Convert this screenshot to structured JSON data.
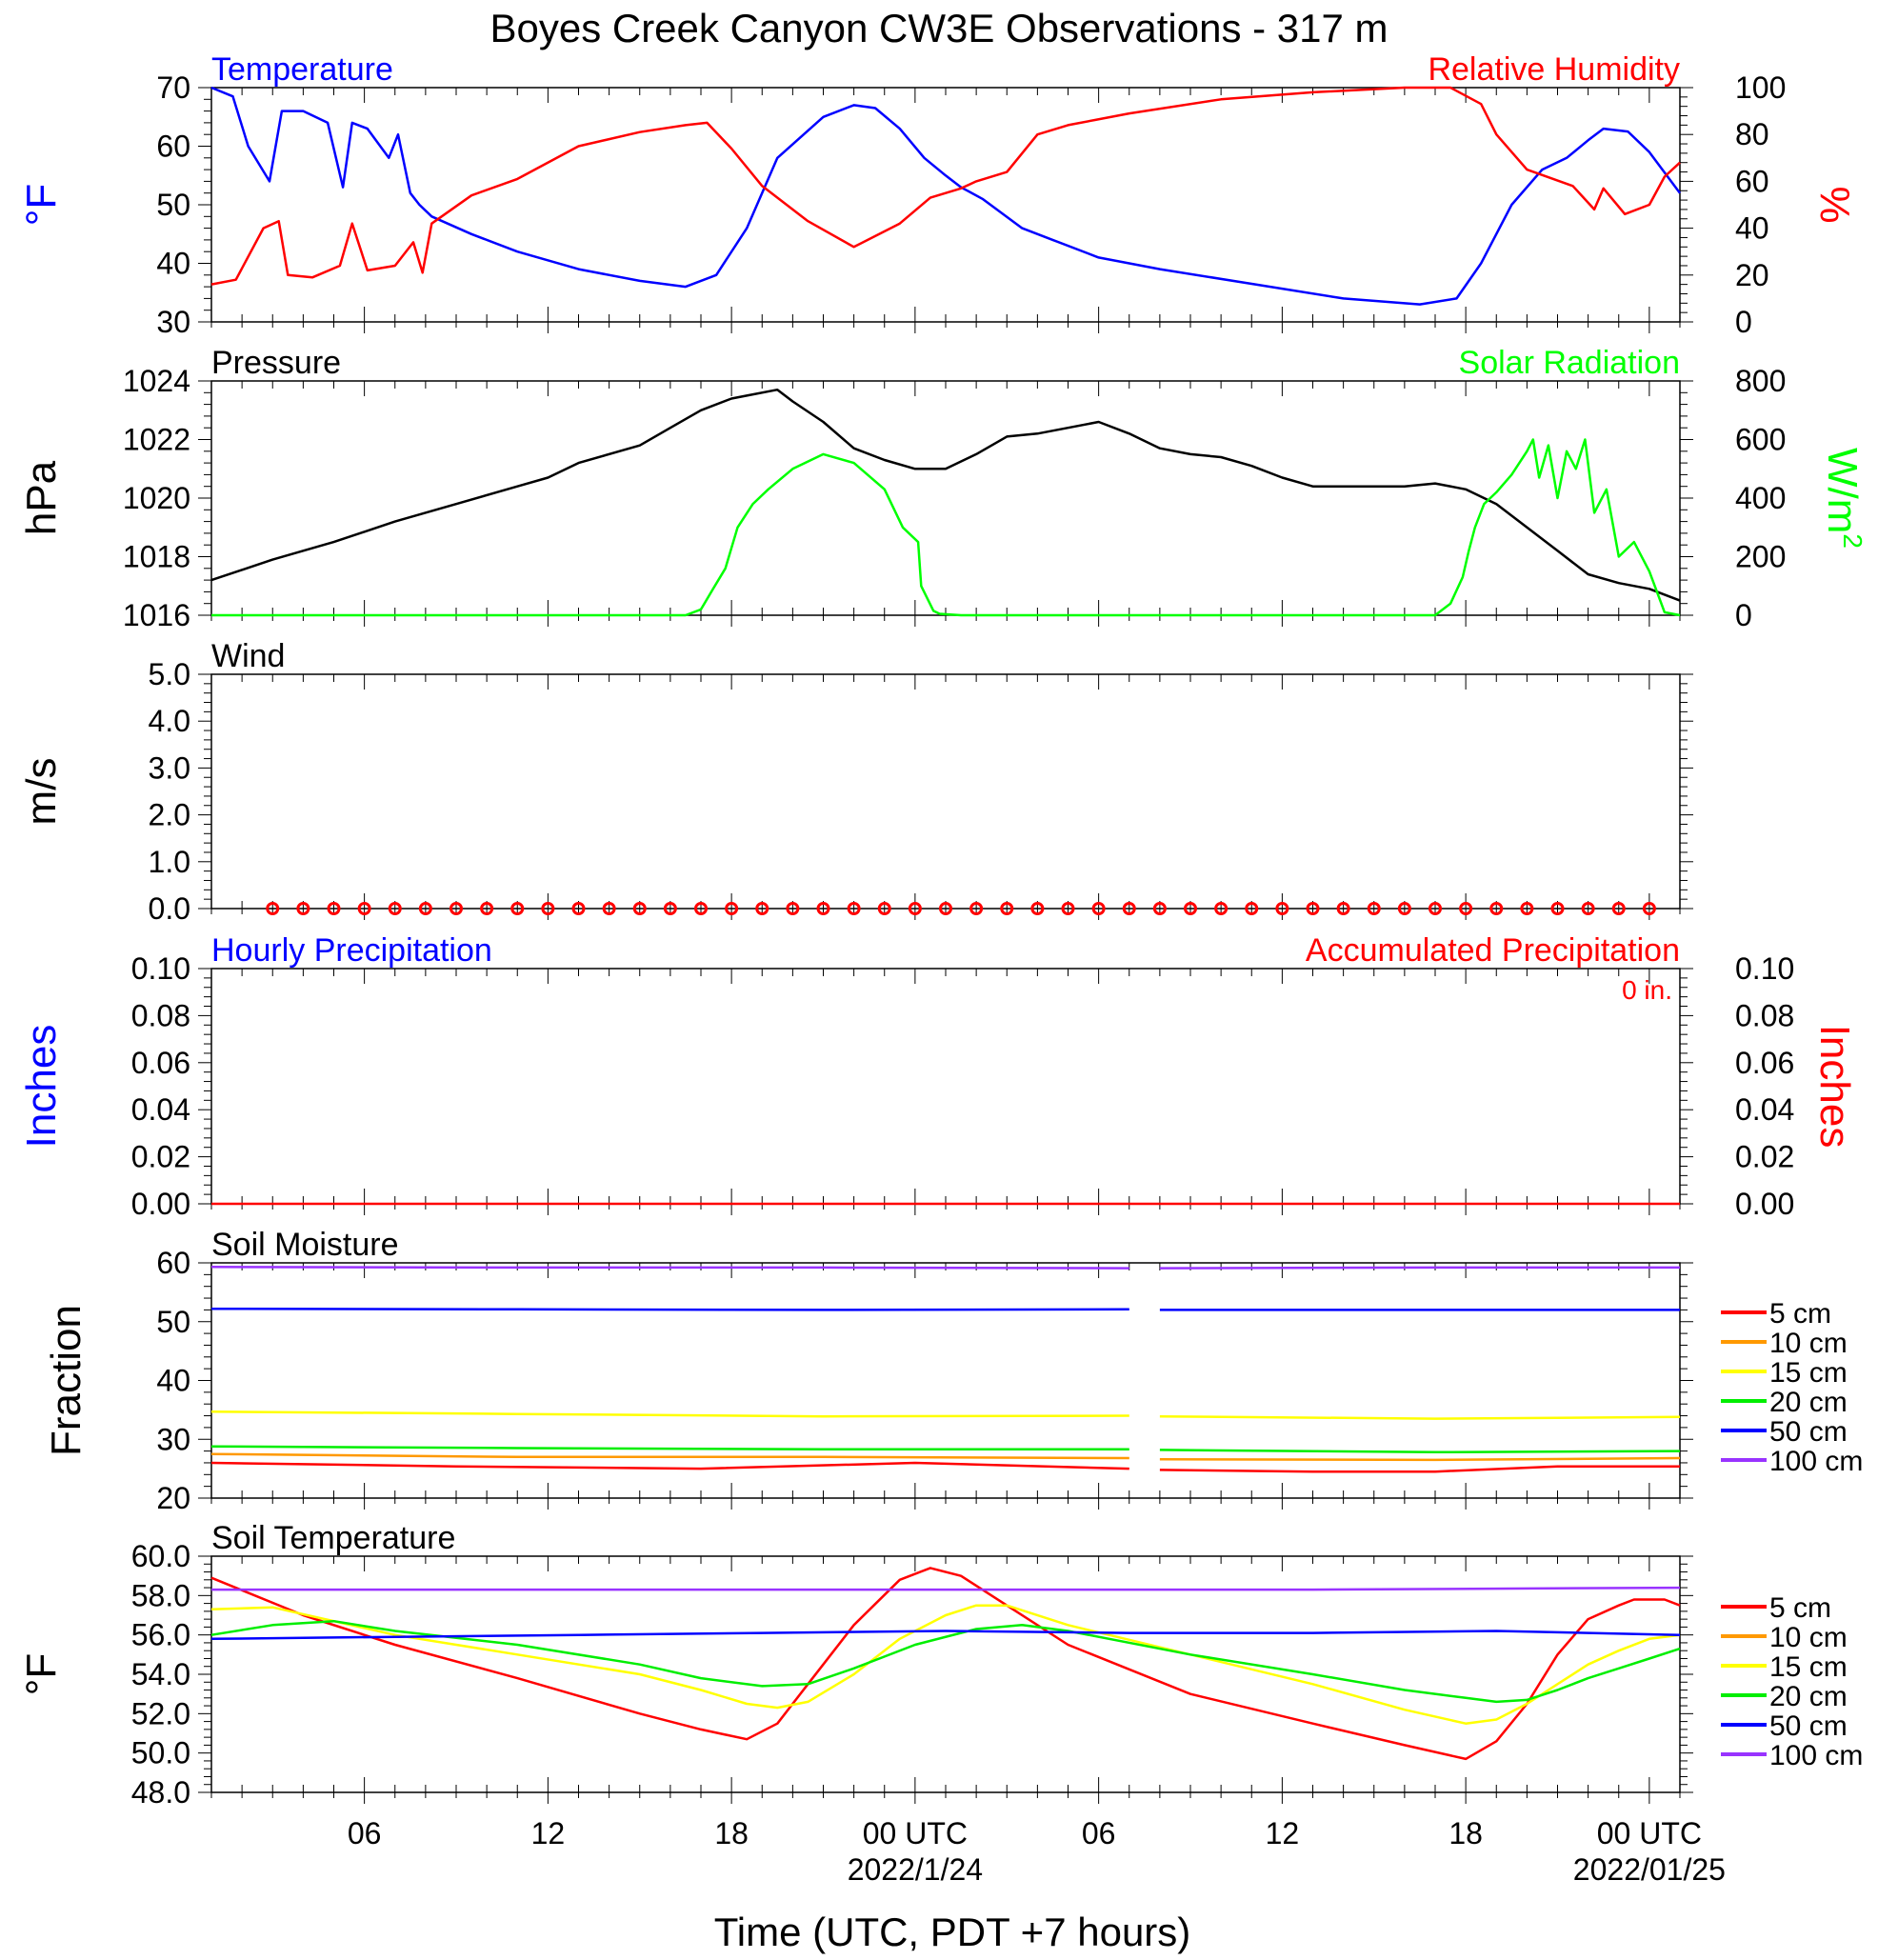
{
  "title": "Boyes Creek Canyon CW3E Observations - 317 m",
  "x_axis": {
    "title": "Time (UTC, PDT +7 hours)",
    "range_hours": [
      0,
      48
    ],
    "tick_labels": [
      {
        "hour": 5,
        "label": "06"
      },
      {
        "hour": 11,
        "label": "12"
      },
      {
        "hour": 17,
        "label": "18"
      },
      {
        "hour": 23,
        "label": "00 UTC"
      },
      {
        "hour": 29,
        "label": "06"
      },
      {
        "hour": 35,
        "label": "12"
      },
      {
        "hour": 41,
        "label": "18"
      },
      {
        "hour": 47,
        "label": "00 UTC"
      }
    ],
    "date_labels": [
      {
        "hour": 23,
        "label": "2022/1/24"
      },
      {
        "hour": 47,
        "label": "2022/01/25"
      }
    ]
  },
  "colors": {
    "temperature": "#0000ff",
    "humidity": "#ff0000",
    "pressure": "#000000",
    "solar": "#00ff00",
    "wind_marker": "#ff0000",
    "soil_5cm": "#ff0000",
    "soil_10cm": "#ff9900",
    "soil_15cm": "#ffff00",
    "soil_20cm": "#00ee00",
    "soil_50cm": "#0000ff",
    "soil_100cm": "#9933ff"
  },
  "chart_data": [
    {
      "type": "line",
      "panel": "temperature_humidity",
      "left_label": "Temperature",
      "right_label": "Relative Humidity",
      "y_left": {
        "label": "°F",
        "range": [
          30,
          70
        ],
        "tick_labels": [
          "30",
          "40",
          "50",
          "60",
          "70"
        ]
      },
      "y_right": {
        "label": "%",
        "range": [
          0,
          100
        ],
        "tick_labels": [
          "0",
          "20",
          "40",
          "60",
          "80",
          "100"
        ]
      },
      "series": [
        {
          "name": "Temperature",
          "axis": "left",
          "x": [
            0,
            0.7,
            1.2,
            1.9,
            2.3,
            3.0,
            3.8,
            4.3,
            4.6,
            5.1,
            5.8,
            6.1,
            6.5,
            6.8,
            7.2,
            8.5,
            10,
            12,
            14,
            15.5,
            16.5,
            17.5,
            18.5,
            20,
            21,
            21.7,
            22.5,
            23.3,
            24,
            24.5,
            25.2,
            26.5,
            27.5,
            29,
            31,
            34,
            37,
            39.5,
            40.7,
            41.5,
            42.5,
            43.5,
            44.3,
            45,
            45.5,
            46.3,
            47,
            48
          ],
          "y": [
            70,
            68.5,
            60,
            54,
            66,
            66,
            64,
            53,
            64,
            63,
            58,
            62,
            52,
            50,
            48,
            45,
            42,
            39,
            37,
            36,
            38,
            46,
            58,
            65,
            67,
            66.5,
            63,
            58,
            55,
            53,
            51,
            46,
            44,
            41,
            39,
            36.5,
            34,
            33,
            34,
            40,
            50,
            56,
            58,
            61,
            63,
            62.5,
            59,
            52
          ]
        },
        {
          "name": "Relative Humidity",
          "axis": "right",
          "x": [
            0,
            0.8,
            1.7,
            2.2,
            2.5,
            3.3,
            4.2,
            4.6,
            5.1,
            6.0,
            6.6,
            6.9,
            7.2,
            8.5,
            10,
            12,
            14,
            15.5,
            16.2,
            17,
            18,
            19.5,
            21,
            22.5,
            23.5,
            24.5,
            25,
            26,
            27,
            28,
            30,
            33,
            36,
            39,
            40.5,
            41.5,
            42,
            43,
            44.5,
            45.2,
            45.5,
            46.2,
            47,
            47.5,
            48
          ],
          "y": [
            16,
            18,
            40,
            43,
            20,
            19,
            24,
            42,
            22,
            24,
            34,
            21,
            42,
            54,
            61,
            75,
            81,
            84,
            85,
            74,
            58,
            43,
            32,
            42,
            53,
            57,
            60,
            64,
            80,
            84,
            89,
            95,
            98,
            100,
            100,
            93,
            80,
            65,
            58,
            48,
            57,
            46,
            50,
            62,
            68
          ]
        }
      ]
    },
    {
      "type": "line",
      "panel": "pressure_solar",
      "left_label": "Pressure",
      "right_label": "Solar Radiation",
      "y_left": {
        "label": "hPa",
        "range": [
          1016,
          1024
        ],
        "tick_labels": [
          "1016",
          "1018",
          "1020",
          "1022",
          "1024"
        ]
      },
      "y_right": {
        "label": "W/m",
        "label_superscript": "2",
        "range": [
          0,
          800
        ],
        "tick_labels": [
          "0",
          "200",
          "400",
          "600",
          "800"
        ]
      },
      "series": [
        {
          "name": "Pressure",
          "axis": "left",
          "x": [
            0,
            2,
            4,
            6,
            8,
            10,
            11,
            12,
            14,
            15,
            16,
            17,
            17.5,
            18.5,
            19,
            20,
            21,
            22,
            23,
            24,
            25,
            26,
            27,
            28,
            29,
            30,
            31,
            32,
            33,
            34,
            35,
            36,
            37,
            38,
            39,
            40,
            41,
            42,
            43,
            44,
            45,
            46,
            47,
            48
          ],
          "y": [
            1017.2,
            1017.9,
            1018.5,
            1019.2,
            1019.8,
            1020.4,
            1020.7,
            1021.2,
            1021.8,
            1022.4,
            1023.0,
            1023.4,
            1023.5,
            1023.7,
            1023.3,
            1022.6,
            1021.7,
            1021.3,
            1021.0,
            1021.0,
            1021.5,
            1022.1,
            1022.2,
            1022.4,
            1022.6,
            1022.2,
            1021.7,
            1021.5,
            1021.4,
            1021.1,
            1020.7,
            1020.4,
            1020.4,
            1020.4,
            1020.4,
            1020.5,
            1020.3,
            1019.8,
            1019.0,
            1018.2,
            1017.4,
            1017.1,
            1016.9,
            1016.5
          ]
        },
        {
          "name": "Solar Radiation",
          "axis": "right",
          "x": [
            0,
            15.5,
            16,
            16.4,
            16.8,
            17.2,
            17.7,
            18.2,
            19,
            20,
            21,
            22,
            22.6,
            23.1,
            23.2,
            23.6,
            23.8,
            24.5,
            40,
            40.5,
            40.9,
            41.1,
            41.3,
            41.6,
            42,
            42.5,
            43,
            43.2,
            43.4,
            43.7,
            44,
            44.3,
            44.6,
            44.9,
            45.2,
            45.6,
            46,
            46.5,
            47,
            47.5,
            48
          ],
          "y": [
            0,
            0,
            20,
            90,
            160,
            300,
            380,
            430,
            500,
            550,
            520,
            430,
            300,
            250,
            100,
            15,
            5,
            0,
            0,
            40,
            130,
            220,
            300,
            380,
            420,
            480,
            560,
            600,
            470,
            580,
            400,
            560,
            500,
            600,
            350,
            430,
            200,
            250,
            150,
            10,
            0
          ]
        }
      ]
    },
    {
      "type": "scatter",
      "panel": "wind",
      "left_label": "Wind",
      "y_left": {
        "label": "m/s",
        "range": [
          0,
          5
        ],
        "tick_labels": [
          "0.0",
          "1.0",
          "2.0",
          "3.0",
          "4.0",
          "5.0"
        ]
      },
      "series": [
        {
          "name": "Wind speed",
          "marker": "circle",
          "x_start": 2,
          "x_end": 47,
          "x_step": 1,
          "value": 0.0
        }
      ]
    },
    {
      "type": "line",
      "panel": "precipitation",
      "left_label": "Hourly Precipitation",
      "right_label": "Accumulated Precipitation",
      "annotation": "0 in.",
      "y_left": {
        "label": "Inches",
        "range": [
          0,
          0.1
        ],
        "tick_labels": [
          "0.00",
          "0.02",
          "0.04",
          "0.06",
          "0.08",
          "0.10"
        ]
      },
      "y_right": {
        "label": "Inches",
        "range": [
          0,
          0.1
        ],
        "tick_labels": [
          "0.00",
          "0.02",
          "0.04",
          "0.06",
          "0.08",
          "0.10"
        ]
      },
      "series": [
        {
          "name": "Accumulated Precipitation",
          "x": [
            0,
            48
          ],
          "y": [
            0,
            0
          ]
        }
      ]
    },
    {
      "type": "line",
      "panel": "soil_moisture",
      "left_label": "Soil Moisture",
      "y_left": {
        "label": "Fraction",
        "range": [
          20,
          60
        ],
        "tick_labels": [
          "20",
          "30",
          "40",
          "50",
          "60"
        ]
      },
      "gap_hours": [
        30.1,
        31.0
      ],
      "legend": [
        "5 cm",
        "10 cm",
        "15 cm",
        "20 cm",
        "50 cm",
        "100 cm"
      ],
      "series": [
        {
          "name": "5 cm",
          "x": [
            0,
            8,
            16,
            23,
            30,
            31,
            36,
            40,
            44,
            48
          ],
          "y": [
            26.0,
            25.4,
            25.0,
            26.0,
            25.0,
            24.8,
            24.5,
            24.5,
            25.4,
            25.4
          ]
        },
        {
          "name": "10 cm",
          "x": [
            0,
            10,
            20,
            30,
            31,
            40,
            48
          ],
          "y": [
            27.5,
            27.0,
            27.0,
            26.8,
            26.6,
            26.5,
            26.8
          ]
        },
        {
          "name": "15 cm",
          "x": [
            0,
            10,
            20,
            30,
            31,
            40,
            48
          ],
          "y": [
            34.7,
            34.3,
            33.9,
            34.0,
            33.9,
            33.5,
            33.8
          ]
        },
        {
          "name": "20 cm",
          "x": [
            0,
            10,
            20,
            30,
            31,
            40,
            48
          ],
          "y": [
            28.8,
            28.5,
            28.3,
            28.3,
            28.2,
            27.8,
            28.0
          ]
        },
        {
          "name": "50 cm",
          "x": [
            0,
            10,
            20,
            30,
            31,
            40,
            48
          ],
          "y": [
            52.2,
            52.1,
            52.0,
            52.1,
            52.0,
            52.0,
            52.0
          ]
        },
        {
          "name": "100 cm",
          "x": [
            0,
            10,
            20,
            30,
            31,
            40,
            48
          ],
          "y": [
            59.3,
            59.2,
            59.2,
            59.1,
            59.1,
            59.2,
            59.2
          ]
        }
      ]
    },
    {
      "type": "line",
      "panel": "soil_temperature",
      "left_label": "Soil Temperature",
      "y_left": {
        "label": "°F",
        "range": [
          48,
          60
        ],
        "tick_labels": [
          "48.0",
          "50.0",
          "52.0",
          "54.0",
          "56.0",
          "58.0",
          "60.0"
        ]
      },
      "legend": [
        "5 cm",
        "10 cm",
        "15 cm",
        "20 cm",
        "50 cm",
        "100 cm"
      ],
      "series": [
        {
          "name": "5 cm",
          "x": [
            0,
            3,
            6,
            10,
            14,
            16,
            17.5,
            18.5,
            19.5,
            21,
            22.5,
            23.5,
            24.5,
            26,
            28,
            32,
            36,
            39,
            41,
            42,
            43,
            44,
            45,
            46,
            46.5,
            47.5,
            48
          ],
          "y": [
            58.9,
            57.0,
            55.5,
            53.8,
            52.0,
            51.2,
            50.7,
            51.5,
            53.5,
            56.5,
            58.8,
            59.4,
            59.0,
            57.5,
            55.5,
            53.0,
            51.5,
            50.4,
            49.7,
            50.6,
            52.5,
            55.0,
            56.8,
            57.5,
            57.8,
            57.8,
            57.5
          ]
        },
        {
          "name": "15 cm",
          "x": [
            0,
            2,
            6,
            10,
            14,
            16,
            17.5,
            18.5,
            19.5,
            21,
            22.5,
            24,
            25,
            26,
            28,
            32,
            36,
            39,
            41,
            42,
            43,
            44,
            45,
            46,
            47,
            48
          ],
          "y": [
            57.3,
            57.4,
            56.0,
            55.0,
            54.0,
            53.2,
            52.5,
            52.3,
            52.6,
            54.0,
            55.8,
            57.0,
            57.5,
            57.5,
            56.5,
            55.0,
            53.5,
            52.2,
            51.5,
            51.7,
            52.5,
            53.5,
            54.5,
            55.2,
            55.8,
            56.0
          ]
        },
        {
          "name": "20 cm",
          "x": [
            0,
            2,
            4,
            6,
            10,
            14,
            16,
            18,
            19.5,
            21,
            23,
            25,
            26.5,
            28,
            32,
            36,
            39,
            41,
            42,
            43,
            44,
            45,
            46,
            47,
            48
          ],
          "y": [
            56.0,
            56.5,
            56.7,
            56.2,
            55.5,
            54.5,
            53.8,
            53.4,
            53.5,
            54.3,
            55.5,
            56.3,
            56.5,
            56.2,
            55.0,
            54.0,
            53.2,
            52.8,
            52.6,
            52.7,
            53.2,
            53.8,
            54.3,
            54.8,
            55.3
          ]
        },
        {
          "name": "50 cm",
          "x": [
            0,
            6,
            12,
            18,
            24,
            30,
            36,
            42,
            48
          ],
          "y": [
            55.8,
            55.9,
            56.0,
            56.1,
            56.2,
            56.1,
            56.1,
            56.2,
            56.0
          ]
        },
        {
          "name": "100 cm",
          "x": [
            0,
            12,
            24,
            36,
            48
          ],
          "y": [
            58.3,
            58.3,
            58.3,
            58.3,
            58.4
          ]
        }
      ]
    }
  ]
}
